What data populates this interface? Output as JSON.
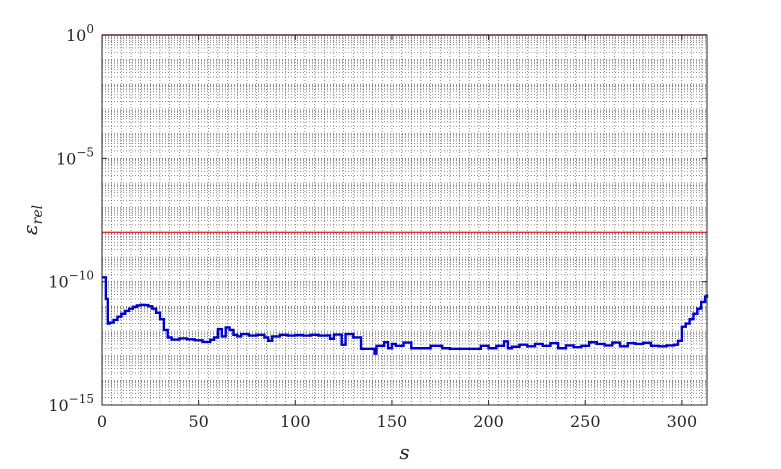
{
  "chart_data": {
    "type": "line",
    "title": "",
    "xlabel": "s",
    "ylabel": "ε_rel",
    "ylabel_main": "ε",
    "ylabel_sub": "rel",
    "xlim": [
      0,
      313
    ],
    "ylim": [
      1e-15,
      1
    ],
    "yscale": "log",
    "grid": "dotted, minor",
    "legend": "none",
    "x_ticks": [
      0,
      50,
      100,
      150,
      200,
      250,
      300
    ],
    "x_tick_labels": [
      "0",
      "50",
      "100",
      "150",
      "200",
      "250",
      "300"
    ],
    "y_ticks": [
      -15,
      -10,
      -5,
      0
    ],
    "y_tick_labels": [
      {
        "base": "10",
        "exp": "−15"
      },
      {
        "base": "10",
        "exp": "−10"
      },
      {
        "base": "10",
        "exp": "−5"
      },
      {
        "base": "10",
        "exp": "0"
      }
    ],
    "reference_lines": [
      {
        "y": 1,
        "color": "#e03030"
      },
      {
        "y": 1e-08,
        "color": "#e03030"
      }
    ],
    "series": [
      {
        "color": "#0000cc",
        "step": true,
        "x": [
          0,
          1,
          2,
          3,
          4,
          6,
          8,
          10,
          12,
          14,
          16,
          18,
          20,
          22,
          24,
          26,
          28,
          30,
          32,
          34,
          36,
          40,
          44,
          48,
          52,
          56,
          58,
          60,
          62,
          64,
          66,
          68,
          70,
          72,
          76,
          80,
          84,
          86,
          88,
          92,
          96,
          100,
          104,
          108,
          112,
          116,
          118,
          120,
          124,
          126,
          130,
          134,
          140,
          141,
          142,
          146,
          148,
          150,
          152,
          156,
          160,
          166,
          170,
          176,
          180,
          188,
          196,
          200,
          204,
          208,
          210,
          212,
          216,
          220,
          224,
          228,
          232,
          236,
          240,
          244,
          248,
          252,
          256,
          260,
          264,
          268,
          272,
          276,
          280,
          284,
          288,
          292,
          296,
          298,
          300,
          302,
          304,
          306,
          308,
          310,
          312,
          313
        ],
        "y": [
          1.5e-10,
          1.5e-10,
          2e-11,
          2e-12,
          2.2e-12,
          2.8e-12,
          3.8e-12,
          5e-12,
          6.5e-12,
          8e-12,
          9.5e-12,
          1.08e-11,
          1.15e-11,
          1.12e-11,
          1e-11,
          8e-12,
          5.5e-12,
          3e-12,
          1.1e-12,
          5.5e-13,
          4.5e-13,
          5e-13,
          4.6e-13,
          4.2e-13,
          3.6e-13,
          4.4e-13,
          5.5e-13,
          1.2e-12,
          6e-13,
          1.4e-12,
          1.1e-12,
          7e-13,
          6e-13,
          7.5e-13,
          6.5e-13,
          7e-13,
          5.5e-13,
          4e-13,
          6e-13,
          7e-13,
          6.5e-13,
          6.8e-13,
          6.5e-13,
          7e-13,
          6.5e-13,
          6.6e-13,
          4.8e-13,
          7.2e-13,
          2.8e-13,
          7.5e-13,
          5.5e-13,
          1.9e-13,
          1.9e-13,
          1.2e-13,
          2.5e-13,
          3.5e-13,
          2e-13,
          3e-13,
          2.5e-13,
          3.4e-13,
          2e-13,
          2e-13,
          2.5e-13,
          2e-13,
          1.9e-13,
          1.9e-13,
          2.5e-13,
          2e-13,
          2.5e-13,
          3.8e-13,
          2e-13,
          2.3e-13,
          2.8e-13,
          2.4e-13,
          3e-13,
          2.5e-13,
          3.2e-13,
          2e-13,
          2.6e-13,
          2.2e-13,
          2.5e-13,
          3.5e-13,
          3e-13,
          2.6e-13,
          3.4e-13,
          2.4e-13,
          3.2e-13,
          3e-13,
          3.3e-13,
          2.5e-13,
          2.4e-13,
          2.6e-13,
          2.8e-13,
          4e-13,
          1.5e-12,
          2e-12,
          3e-12,
          5e-12,
          8e-12,
          1.5e-11,
          2.5e-11,
          3e-11
        ]
      }
    ]
  }
}
